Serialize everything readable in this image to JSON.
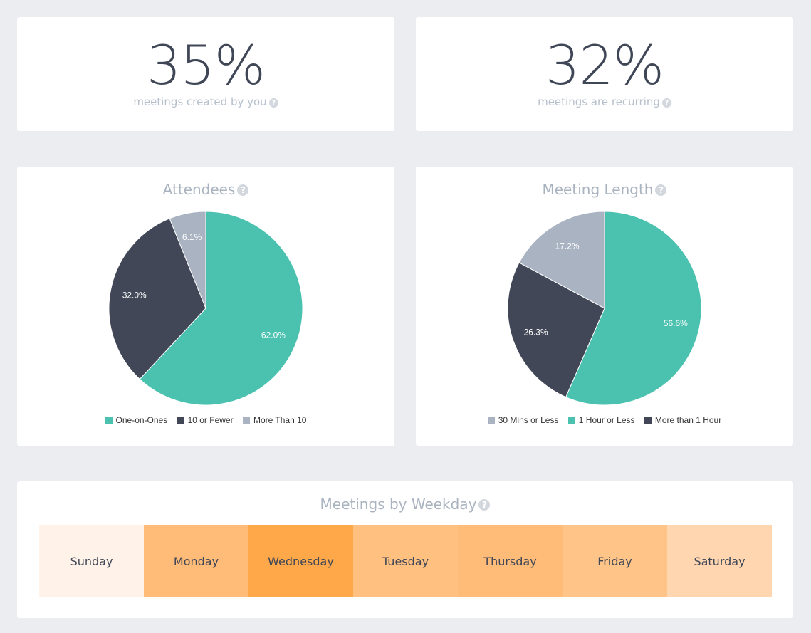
{
  "stats": [
    {
      "value": "35%",
      "label": "meetings created by you",
      "icon": "help-circle-icon"
    },
    {
      "value": "32%",
      "label": "meetings are recurring",
      "icon": "help-circle-icon"
    }
  ],
  "colors": {
    "teal": "#4bc2b0",
    "dark": "#414757",
    "gray": "#a9b3c1"
  },
  "chart_data": [
    {
      "type": "pie",
      "title": "Attendees",
      "slices": [
        {
          "name": "One-on-Ones",
          "value": 62.0,
          "label": "62.0%",
          "color": "#4bc2b0"
        },
        {
          "name": "10 or Fewer",
          "value": 32.0,
          "label": "32.0%",
          "color": "#414757"
        },
        {
          "name": "More Than 10",
          "value": 6.1,
          "label": "6.1%",
          "color": "#a9b3c1"
        }
      ],
      "legend": [
        "One-on-Ones",
        "10 or Fewer",
        "More Than 10"
      ],
      "legend_position": "bottom"
    },
    {
      "type": "pie",
      "title": "Meeting Length",
      "slices": [
        {
          "name": "1 Hour or Less",
          "value": 56.6,
          "label": "56.6%",
          "color": "#4bc2b0"
        },
        {
          "name": "More than 1 Hour",
          "value": 26.3,
          "label": "26.3%",
          "color": "#414757"
        },
        {
          "name": "30 Mins or Less",
          "value": 17.2,
          "label": "17.2%",
          "color": "#a9b3c1"
        }
      ],
      "legend": [
        "30 Mins or Less",
        "1 Hour or Less",
        "More than 1 Hour"
      ],
      "legend_position": "bottom"
    },
    {
      "type": "heatmap",
      "title": "Meetings by Weekday",
      "cells": [
        {
          "label": "Sunday",
          "color": "#fff3e9"
        },
        {
          "label": "Monday",
          "color": "#ffbb78"
        },
        {
          "label": "Wednesday",
          "color": "#ffa84a"
        },
        {
          "label": "Tuesday",
          "color": "#ffc080"
        },
        {
          "label": "Thursday",
          "color": "#ffbc79"
        },
        {
          "label": "Friday",
          "color": "#ffc487"
        },
        {
          "label": "Saturday",
          "color": "#ffd6af"
        }
      ]
    }
  ]
}
